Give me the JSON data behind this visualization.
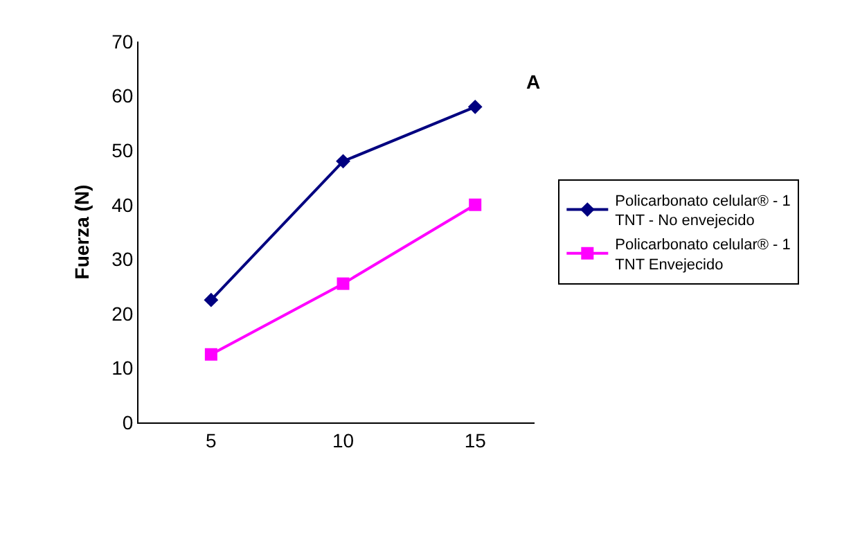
{
  "chart_data": {
    "type": "line",
    "ylabel": "Fuerza (N)",
    "annotations": [
      "A"
    ],
    "categories": [
      "5",
      "10",
      "15"
    ],
    "series": [
      {
        "name": "Policarbonato celular® - 1 TNT - No envejecido",
        "color": "#000080",
        "marker": "diamond",
        "values": [
          22.5,
          48,
          58
        ]
      },
      {
        "name": "Policarbonato celular® - 1 TNT Envejecido",
        "color": "#ff00ff",
        "marker": "square",
        "values": [
          12.5,
          25.5,
          40
        ]
      }
    ],
    "ylim": [
      0,
      70
    ],
    "yticks": [
      0,
      10,
      20,
      30,
      40,
      50,
      60,
      70
    ],
    "grid": false,
    "legend": "right"
  }
}
